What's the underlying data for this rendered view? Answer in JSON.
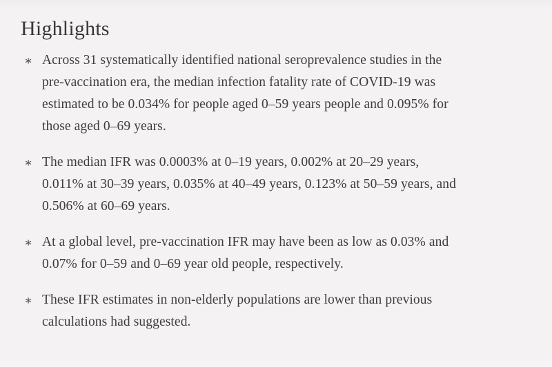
{
  "page": {
    "background_color": "#f4f2f3",
    "text_color": "#3d3c3f",
    "heading_color": "#38373a"
  },
  "highlights": {
    "title": "Highlights",
    "marker": "∗",
    "items": [
      {
        "text": "Across 31 systematically identified national seroprevalence studies in the pre-vaccination era, the median infection fatality rate of COVID-19 was estimated to be 0.034% for people aged 0–59 years people and 0.095% for those aged 0–69 years.",
        "lines": [
          "Across 31 systematically identified national seroprevalence studies in the",
          "pre-vaccination era, the median infection fatality rate of COVID-19 was",
          "estimated to be 0.034% for people aged 0–59 years people and 0.095% for",
          "those aged 0–69 years."
        ]
      },
      {
        "text": "The median IFR was 0.0003% at 0–19 years, 0.002% at 20–29 years, 0.011% at 30–39 years, 0.035% at 40–49 years, 0.123% at 50–59 years, and 0.506% at 60–69 years.",
        "lines": [
          "The median IFR was 0.0003% at 0–19 years, 0.002% at 20–29 years,",
          "0.011% at 30–39 years, 0.035% at 40–49 years, 0.123% at 50–59 years, and",
          "0.506% at 60–69 years."
        ]
      },
      {
        "text": "At a global level, pre-vaccination IFR may have been as low as 0.03% and 0.07% for 0–59 and 0–69 year old people, respectively.",
        "lines": [
          "At a global level, pre-vaccination IFR may have been as low as 0.03% and",
          "0.07% for 0–59 and 0–69 year old people, respectively."
        ]
      },
      {
        "text": "These IFR estimates in non-elderly populations are lower than previous calculations had suggested.",
        "lines": [
          "These IFR estimates in non-elderly populations are lower than previous",
          "calculations had suggested."
        ]
      }
    ]
  }
}
